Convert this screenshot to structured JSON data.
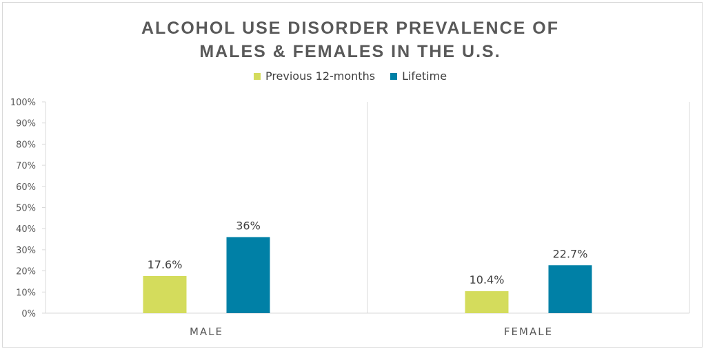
{
  "chart_data": {
    "type": "bar",
    "title_lines": [
      "ALCOHOL USE DISORDER PREVALENCE OF",
      "MALES & FEMALES IN THE U.S."
    ],
    "categories": [
      "MALE",
      "FEMALE"
    ],
    "series": [
      {
        "name": "Previous 12-months",
        "color": "#d4dc5c",
        "values": [
          17.6,
          10.4
        ],
        "labels": [
          "17.6%",
          "10.4%"
        ]
      },
      {
        "name": "Lifetime",
        "color": "#0080a6",
        "values": [
          36,
          22.7
        ],
        "labels": [
          "36%",
          "22.7%"
        ]
      }
    ],
    "ylim": [
      0,
      100
    ],
    "yticks": [
      "0%",
      "10%",
      "20%",
      "30%",
      "40%",
      "50%",
      "60%",
      "70%",
      "80%",
      "90%",
      "100%"
    ],
    "legend_position": "top-center",
    "grid": false
  }
}
